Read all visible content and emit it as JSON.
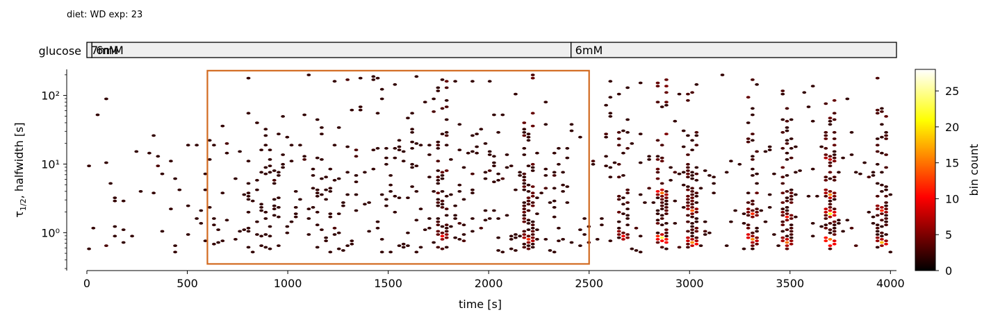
{
  "header": {
    "diet_text": "diet: WD  exp: 23"
  },
  "protocol": {
    "label": "glucose",
    "segments": [
      {
        "label": "7mM",
        "start": 0,
        "end": 25
      },
      {
        "label": "6mM",
        "start": 25,
        "end": 2410
      },
      {
        "label": "6mM",
        "start": 2410,
        "end": 4030
      }
    ]
  },
  "chart_data": {
    "type": "heatmap",
    "subtype": "hexbin",
    "xlabel": "time [s]",
    "ylabel_main": "τ",
    "ylabel_sub": "1/2",
    "ylabel_rest": ", halfwidth [s]",
    "xlim": [
      0,
      4030
    ],
    "ylim": [
      0.28,
      240
    ],
    "yscale": "log",
    "x_ticks": [
      0,
      500,
      1000,
      1500,
      2000,
      2500,
      3000,
      3500,
      4000
    ],
    "x_tick_labels": [
      "0",
      "500",
      "1000",
      "1500",
      "2000",
      "2500",
      "3000",
      "3500",
      "4000"
    ],
    "y_ticks": [
      1,
      10,
      100
    ],
    "y_tick_labels": [
      "10⁰",
      "10¹",
      "10²"
    ],
    "highlight_box": {
      "x": [
        600,
        2500
      ],
      "y": [
        0.35,
        230
      ],
      "color": "#d2691e"
    },
    "colorbar": {
      "label": "bin count",
      "range": [
        0,
        28
      ],
      "ticks": [
        0,
        5,
        10,
        15,
        20,
        25
      ],
      "tick_labels": [
        "0",
        "5",
        "10",
        "15",
        "20",
        "25"
      ],
      "colormap": "hot"
    },
    "hotspots": [
      {
        "x": 1760,
        "y": 0.75,
        "count": 8
      },
      {
        "x": 2200,
        "y": 0.7,
        "count": 9
      },
      {
        "x": 2670,
        "y": 0.8,
        "count": 9
      },
      {
        "x": 2860,
        "y": 0.7,
        "count": 22
      },
      {
        "x": 2860,
        "y": 3.5,
        "count": 14
      },
      {
        "x": 3010,
        "y": 0.6,
        "count": 14
      },
      {
        "x": 3010,
        "y": 1.8,
        "count": 10
      },
      {
        "x": 3310,
        "y": 0.7,
        "count": 14
      },
      {
        "x": 3310,
        "y": 1.7,
        "count": 9
      },
      {
        "x": 3500,
        "y": 0.65,
        "count": 14
      },
      {
        "x": 3500,
        "y": 1.6,
        "count": 10
      },
      {
        "x": 3710,
        "y": 0.65,
        "count": 25
      },
      {
        "x": 3710,
        "y": 1.7,
        "count": 18
      },
      {
        "x": 3710,
        "y": 3.5,
        "count": 12
      },
      {
        "x": 3710,
        "y": 12,
        "count": 7
      },
      {
        "x": 3970,
        "y": 0.65,
        "count": 15
      },
      {
        "x": 3960,
        "y": 1.8,
        "count": 10
      }
    ],
    "density_profile": [
      {
        "x": 0,
        "level": 0.35
      },
      {
        "x": 600,
        "level": 0.5
      },
      {
        "x": 1000,
        "level": 1.0
      },
      {
        "x": 1500,
        "level": 0.85
      },
      {
        "x": 2000,
        "level": 0.85
      },
      {
        "x": 2500,
        "level": 0.5
      },
      {
        "x": 3000,
        "level": 0.55
      },
      {
        "x": 3500,
        "level": 0.5
      },
      {
        "x": 4000,
        "level": 0.45
      }
    ],
    "streaks": [
      {
        "x": 1760,
        "strength": 0.8
      },
      {
        "x": 2200,
        "strength": 1.0
      },
      {
        "x": 2670,
        "strength": 0.7
      },
      {
        "x": 2860,
        "strength": 1.0
      },
      {
        "x": 3010,
        "strength": 0.9
      },
      {
        "x": 3310,
        "strength": 0.8
      },
      {
        "x": 3500,
        "strength": 0.8
      },
      {
        "x": 3710,
        "strength": 1.0
      },
      {
        "x": 3970,
        "strength": 0.6
      }
    ],
    "seed": 23
  }
}
